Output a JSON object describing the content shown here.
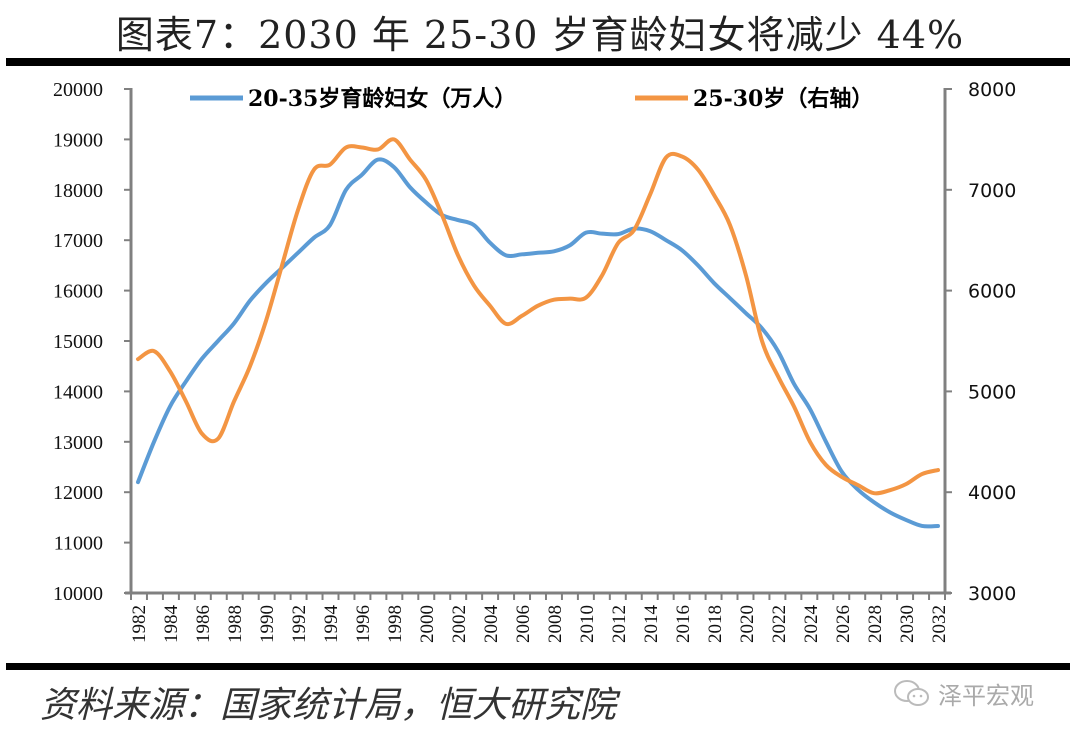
{
  "title": "图表7：2030 年 25-30 岁育龄妇女将减少 44%",
  "source": "资料来源：国家统计局，恒大研究院",
  "watermark": {
    "text": "泽平宏观",
    "icon": "wechat-icon"
  },
  "colors": {
    "blue": "#5b9bd5",
    "orange": "#f39543",
    "axis": "#808080"
  },
  "chart_data": {
    "type": "line",
    "title": "图表7：2030 年 25-30 岁育龄妇女将减少 44%",
    "xlabel": "",
    "ylabel": "",
    "ylim": [
      10000,
      20000
    ],
    "y2lim": [
      3000,
      8000
    ],
    "grid": false,
    "legend": "top",
    "y_ticks": [
      "20000",
      "19000",
      "18000",
      "17000",
      "16000",
      "15000",
      "14000",
      "13000",
      "12000",
      "11000",
      "10000"
    ],
    "y2_ticks": [
      "8000",
      "7000",
      "6000",
      "5000",
      "4000",
      "3000"
    ],
    "x_tick_labels": [
      "1982",
      "1984",
      "1986",
      "1988",
      "1990",
      "1992",
      "1994",
      "1996",
      "1998",
      "2000",
      "2002",
      "2004",
      "2006",
      "2008",
      "2010",
      "2012",
      "2014",
      "2016",
      "2018",
      "2020",
      "2022",
      "2024",
      "2026",
      "2028",
      "2030",
      "2032"
    ],
    "x": [
      1982,
      1983,
      1984,
      1985,
      1986,
      1987,
      1988,
      1989,
      1990,
      1991,
      1992,
      1993,
      1994,
      1995,
      1996,
      1997,
      1998,
      1999,
      2000,
      2001,
      2002,
      2003,
      2004,
      2005,
      2006,
      2007,
      2008,
      2009,
      2010,
      2011,
      2012,
      2013,
      2014,
      2015,
      2016,
      2017,
      2018,
      2019,
      2020,
      2021,
      2022,
      2023,
      2024,
      2025,
      2026,
      2027,
      2028,
      2029,
      2030,
      2031,
      2032
    ],
    "series": [
      {
        "name": "20-35岁育龄妇女（万人）",
        "axis": "left",
        "values": [
          12200,
          13000,
          13700,
          14200,
          14650,
          15000,
          15350,
          15800,
          16150,
          16450,
          16750,
          17050,
          17300,
          18000,
          18300,
          18600,
          18450,
          18050,
          17750,
          17500,
          17400,
          17300,
          16950,
          16700,
          16720,
          16750,
          16780,
          16900,
          17150,
          17130,
          17120,
          17230,
          17180,
          17000,
          16800,
          16500,
          16150,
          15850,
          15550,
          15250,
          14800,
          14150,
          13650,
          13000,
          12400,
          12050,
          11800,
          11600,
          11450,
          11330,
          11330
        ]
      },
      {
        "name": "25-30岁（右轴）",
        "axis": "right",
        "values": [
          5320,
          5400,
          5200,
          4900,
          4580,
          4530,
          4900,
          5250,
          5700,
          6250,
          6800,
          7200,
          7250,
          7420,
          7420,
          7400,
          7500,
          7300,
          7100,
          6750,
          6350,
          6050,
          5850,
          5670,
          5750,
          5850,
          5910,
          5920,
          5930,
          6150,
          6470,
          6600,
          6950,
          7320,
          7330,
          7200,
          6950,
          6650,
          6150,
          5500,
          5150,
          4850,
          4500,
          4270,
          4150,
          4070,
          3990,
          4020,
          4080,
          4180,
          4220
        ]
      }
    ]
  }
}
